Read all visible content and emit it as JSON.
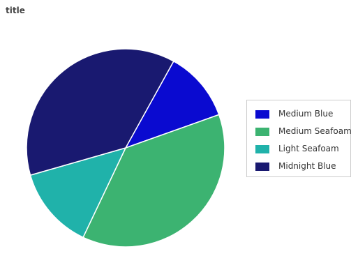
{
  "chart_data": {
    "type": "pie",
    "title": "title",
    "legend_placement": "right",
    "series": [
      {
        "name": "Medium Blue",
        "value": 11.5,
        "color": "#0a0ad0"
      },
      {
        "name": "Medium Seafoam",
        "value": 37.5,
        "color": "#3cb371"
      },
      {
        "name": "Light Seafoam",
        "value": 13.5,
        "color": "#20b2aa"
      },
      {
        "name": "Midnight Blue",
        "value": 37.5,
        "color": "#191970"
      }
    ]
  }
}
